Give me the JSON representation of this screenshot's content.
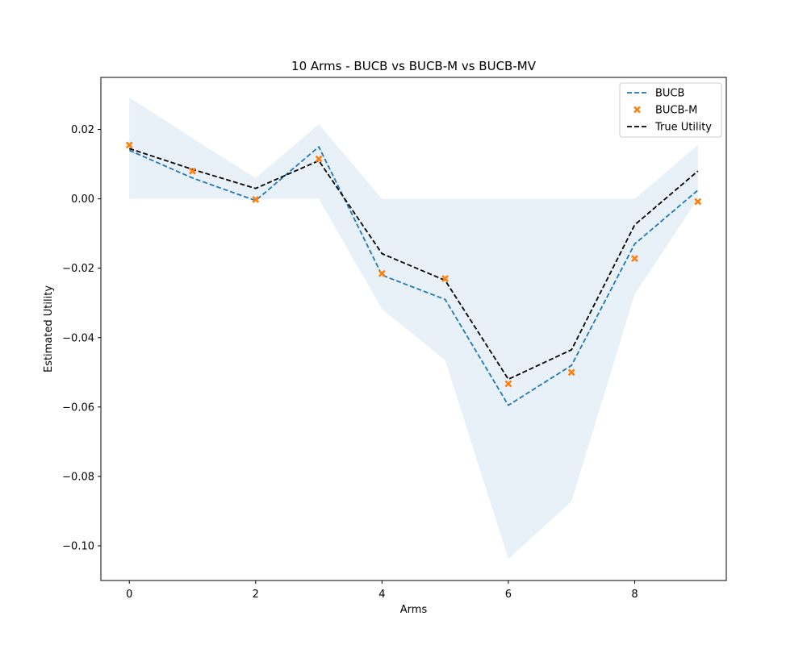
{
  "chart_data": {
    "type": "line",
    "title": "10 Arms - BUCB vs BUCB-M vs BUCB-MV",
    "xlabel": "Arms",
    "ylabel": "Estimated Utility",
    "xlim": [
      -0.45,
      9.45
    ],
    "ylim": [
      -0.11,
      0.035
    ],
    "xticks": [
      0,
      2,
      4,
      6,
      8
    ],
    "xtick_labels": [
      "0",
      "2",
      "4",
      "6",
      "8"
    ],
    "yticks": [
      0.02,
      0.0,
      -0.02,
      -0.04,
      -0.06,
      -0.08,
      -0.1
    ],
    "ytick_labels": [
      "0.02",
      "0.00",
      "−0.02",
      "−0.04",
      "−0.06",
      "−0.08",
      "−0.10"
    ],
    "grid": false,
    "legend_position": "top-right",
    "x": [
      0,
      1,
      2,
      3,
      4,
      5,
      6,
      7,
      8,
      9
    ],
    "series": [
      {
        "name": "BUCB",
        "style": "dashed-line",
        "color": "#1f77b4",
        "values": [
          0.014,
          0.006,
          -0.0005,
          0.015,
          -0.022,
          -0.029,
          -0.0595,
          -0.048,
          -0.013,
          0.0025
        ]
      },
      {
        "name": "BUCB-M",
        "style": "x-markers",
        "color": "#ff7f0e",
        "values": [
          0.0155,
          0.008,
          -0.0002,
          0.0115,
          -0.0215,
          -0.023,
          -0.0533,
          -0.05,
          -0.0172,
          -0.0008
        ]
      },
      {
        "name": "True Utility",
        "style": "dashed-line",
        "color": "#000000",
        "values": [
          0.0145,
          0.0085,
          0.003,
          0.011,
          -0.0158,
          -0.0235,
          -0.052,
          -0.0435,
          -0.0075,
          0.008
        ]
      }
    ],
    "band": {
      "color": "#1f77b4",
      "opacity": 0.1,
      "lower": [
        0,
        0,
        0,
        0,
        -0.0318,
        -0.0465,
        -0.1038,
        -0.0872,
        -0.0275,
        0
      ],
      "upper": [
        0.0292,
        0.0175,
        0.006,
        0.0215,
        0,
        0,
        0,
        0,
        0,
        0.0155
      ]
    }
  }
}
